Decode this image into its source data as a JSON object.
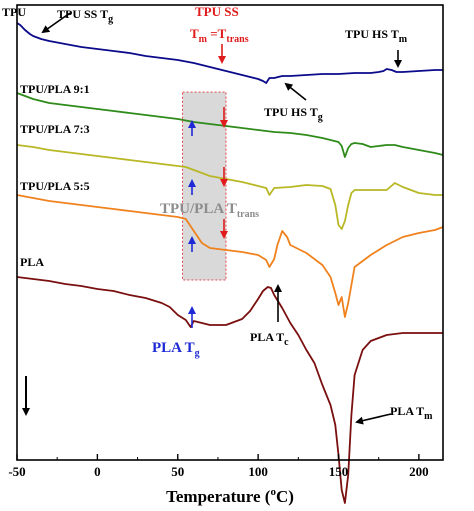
{
  "chart_data": {
    "type": "line",
    "title": "",
    "xlabel": "Temperature (°C)",
    "xlabel_parts": {
      "main": "Temperature (",
      "sup": "o",
      "tail": "C)"
    },
    "ylabel": "",
    "xlim": [
      -50,
      215
    ],
    "xticks": [
      -50,
      0,
      50,
      100,
      150,
      200
    ],
    "y_axis_ticks_shown": false,
    "series": [
      {
        "name": "TPU",
        "label": "TPU",
        "color": "#0a0a8a",
        "x": [
          -50,
          -48,
          -45,
          -42,
          -40,
          -35,
          -30,
          -20,
          -10,
          0,
          10,
          20,
          30,
          40,
          50,
          60,
          70,
          75,
          80,
          90,
          95,
          100,
          103,
          105,
          107,
          110,
          115,
          120,
          130,
          140,
          150,
          160,
          170,
          175,
          178,
          180,
          183,
          186,
          190,
          200,
          210,
          215
        ],
        "y": [
          18,
          20,
          25,
          29,
          31,
          34,
          36,
          39,
          42,
          44,
          46,
          48,
          51,
          53,
          55,
          58,
          62,
          64,
          66,
          70,
          72,
          74,
          76,
          78,
          73,
          73,
          71,
          71,
          70,
          69,
          69,
          68,
          68,
          67,
          66,
          64,
          65,
          67,
          67,
          66,
          65,
          65
        ]
      },
      {
        "name": "TPU/PLA 9:1",
        "label": "TPU/PLA 9:1",
        "color": "#2e8b1a",
        "x": [
          -50,
          -40,
          -30,
          -20,
          -10,
          0,
          10,
          20,
          30,
          40,
          50,
          60,
          70,
          80,
          90,
          100,
          110,
          120,
          130,
          140,
          145,
          150,
          152,
          154,
          156,
          158,
          160,
          165,
          170,
          175,
          180,
          185,
          190,
          200,
          210,
          215
        ],
        "y": [
          88,
          94,
          98,
          100,
          102,
          104,
          106,
          108,
          110,
          112,
          114,
          117,
          119,
          121,
          123,
          125,
          127,
          128,
          130,
          133,
          135,
          137,
          141,
          152,
          143,
          139,
          138,
          139,
          142,
          141,
          140,
          140,
          142,
          145,
          148,
          150
        ]
      },
      {
        "name": "TPU/PLA 7:3",
        "label": "TPU/PLA 7:3",
        "color": "#b8b826",
        "x": [
          -50,
          -40,
          -30,
          -20,
          -10,
          0,
          10,
          20,
          30,
          40,
          50,
          55,
          60,
          65,
          70,
          80,
          90,
          100,
          105,
          107,
          110,
          120,
          130,
          140,
          145,
          148,
          150,
          152,
          154,
          156,
          158,
          160,
          170,
          180,
          185,
          190,
          200,
          210,
          215
        ],
        "y": [
          140,
          142,
          145,
          147,
          149,
          151,
          153,
          155,
          157,
          159,
          161,
          162,
          165,
          168,
          171,
          174,
          177,
          181,
          183,
          190,
          183,
          182,
          180,
          181,
          184,
          200,
          220,
          224,
          216,
          200,
          188,
          185,
          185,
          185,
          178,
          182,
          188,
          190,
          190
        ]
      },
      {
        "name": "TPU/PLA 5:5",
        "label": "TPU/PLA 5:5",
        "color": "#f0821e",
        "x": [
          -50,
          -40,
          -30,
          -20,
          -10,
          0,
          10,
          20,
          30,
          40,
          50,
          55,
          60,
          65,
          70,
          80,
          90,
          100,
          105,
          107,
          110,
          112,
          115,
          118,
          120,
          130,
          140,
          145,
          148,
          150,
          152,
          154,
          156,
          158,
          160,
          170,
          180,
          190,
          200,
          210,
          215
        ],
        "y": [
          190,
          193,
          196,
          198,
          200,
          202,
          204,
          206,
          208,
          210,
          212,
          214,
          226,
          238,
          243,
          245,
          247,
          250,
          255,
          262,
          254,
          240,
          226,
          232,
          240,
          248,
          260,
          272,
          288,
          300,
          292,
          312,
          298,
          280,
          262,
          250,
          240,
          232,
          228,
          225,
          222
        ]
      },
      {
        "name": "PLA",
        "label": "PLA",
        "color": "#7a0f0f",
        "x": [
          -50,
          -40,
          -30,
          -20,
          -10,
          0,
          10,
          20,
          30,
          40,
          45,
          50,
          55,
          58,
          60,
          65,
          70,
          80,
          90,
          95,
          100,
          103,
          106,
          108,
          110,
          115,
          120,
          125,
          130,
          135,
          140,
          145,
          148,
          150,
          152,
          154,
          156,
          158,
          160,
          165,
          170,
          180,
          190,
          200,
          210,
          215
        ],
        "y": [
          272,
          274,
          276,
          279,
          281,
          284,
          286,
          290,
          293,
          298,
          302,
          310,
          315,
          322,
          316,
          318,
          320,
          320,
          314,
          306,
          294,
          286,
          282,
          283,
          290,
          303,
          318,
          330,
          345,
          358,
          380,
          400,
          420,
          450,
          485,
          498,
          470,
          410,
          370,
          345,
          336,
          330,
          328,
          328,
          328,
          328
        ]
      }
    ],
    "annotations": {
      "tpu_ss_tg": {
        "main": "TPU SS T",
        "sub": "g"
      },
      "tpu_ss_head": "TPU SS",
      "tm_eq": {
        "a": "T",
        "a_sub": "m",
        "b": " =T",
        "b_sub": "trans"
      },
      "tpu_hs_tm": {
        "main": "TPU HS T",
        "sub": "m"
      },
      "tpu_hs_tg": {
        "main": "TPU HS T",
        "sub": "g"
      },
      "band_label": {
        "main": "TPU/PLA T",
        "sub": "trans"
      },
      "pla_tg": {
        "main": "PLA T",
        "sub": "g"
      },
      "pla_tc": {
        "main": "PLA T",
        "sub": "c"
      },
      "pla_tm": {
        "main": "PLA T",
        "sub": "m"
      }
    },
    "transition_band": {
      "x_start": 53,
      "x_end": 80
    },
    "colors": {
      "axes": "#000000",
      "arrow_black": "#000000",
      "arrow_red": "#e01b1b",
      "arrow_blue": "#1f2ad6",
      "band_fill": "#d9d9d9",
      "band_border": "#e01b1b",
      "band_text": "#8c8c8c"
    }
  }
}
